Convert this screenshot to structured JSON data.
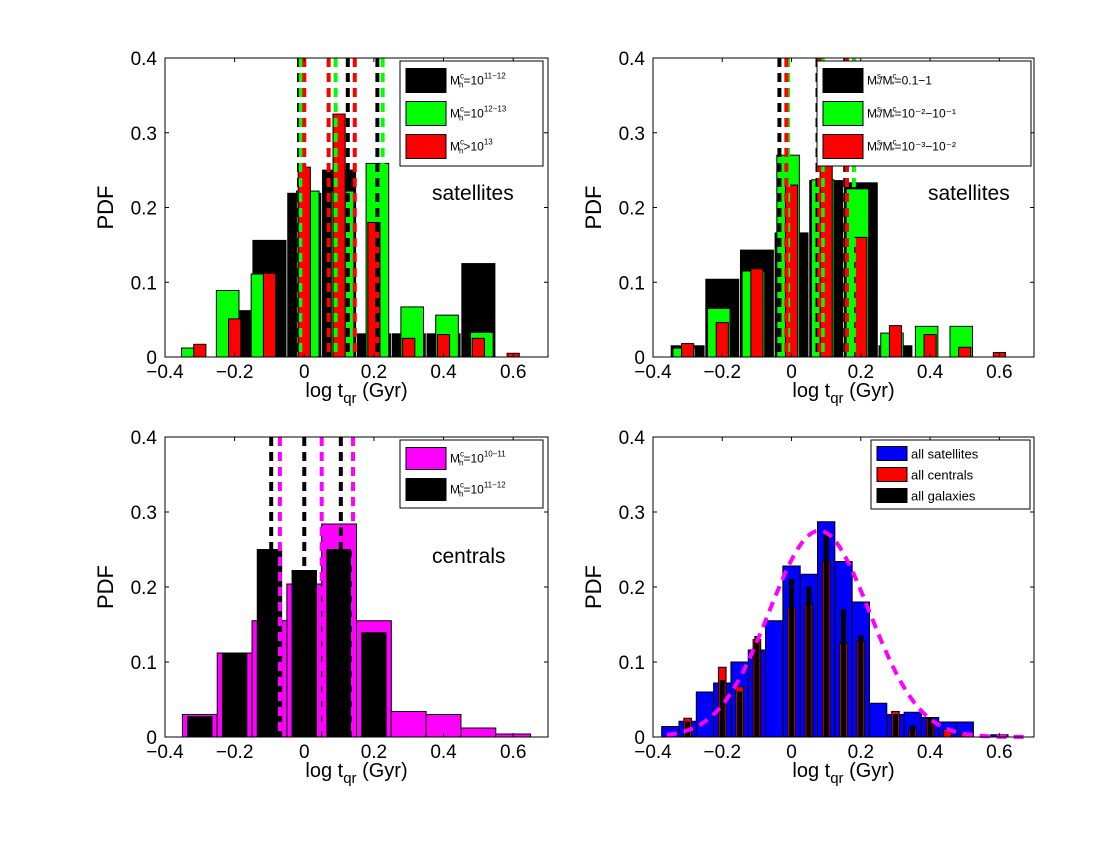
{
  "figure": {
    "panels": 4
  },
  "chart_data": [
    {
      "type": "bar",
      "id": "tl",
      "annotation": "satellites",
      "xlabel": "log t",
      "xlabel_sub": "qr",
      "xlabel_unit": " (Gyr)",
      "ylabel": "PDF",
      "xlim": [
        -0.4,
        0.7
      ],
      "ylim": [
        0,
        0.4
      ],
      "xticks": [
        -0.4,
        -0.2,
        0,
        0.2,
        0.4,
        0.6
      ],
      "xtick_labels": [
        "−0.4",
        "−0.2",
        "0",
        "0.2",
        "0.4",
        "0.6"
      ],
      "yticks": [
        0,
        0.1,
        0.2,
        0.3,
        0.4
      ],
      "ytick_labels": [
        "0",
        "0.1",
        "0.2",
        "0.3",
        "0.4"
      ],
      "legend": [
        {
          "base": "M",
          "sup": "c",
          "sub": "h",
          "rest": "=10",
          "rsup": "11−12",
          "color": "#000000"
        },
        {
          "base": "M",
          "sup": "c",
          "sub": "h",
          "rest": "=10",
          "rsup": "12−13",
          "color": "#00ff00"
        },
        {
          "base": "M",
          "sup": "c",
          "sub": "h",
          "rest": ">10",
          "rsup": "13",
          "color": "#ff0000"
        }
      ],
      "series": [
        {
          "name": "M_h^c=10^11-12",
          "color": "#000000",
          "x": [
            -0.2,
            -0.1,
            0.0,
            0.1,
            0.2,
            0.3,
            0.4,
            0.5
          ],
          "width": 0.095,
          "values": [
            0.062,
            0.156,
            0.219,
            0.25,
            0.031,
            0.031,
            0.031,
            0.125
          ]
        },
        {
          "name": "M_h^c=10^12-13",
          "color": "#00ff00",
          "x": [
            -0.32,
            -0.22,
            -0.12,
            0.01,
            0.11,
            0.21,
            0.31,
            0.41,
            0.51
          ],
          "width": 0.065,
          "values": [
            0.012,
            0.089,
            0.111,
            0.222,
            0.222,
            0.259,
            0.067,
            0.056,
            0.033
          ]
        },
        {
          "name": "M_h^c>10^13",
          "color": "#ff0000",
          "x": [
            -0.3,
            -0.2,
            -0.1,
            0.0,
            0.1,
            0.2,
            0.3,
            0.4,
            0.5,
            0.6
          ],
          "width": 0.035,
          "values": [
            0.017,
            0.051,
            0.112,
            0.254,
            0.325,
            0.18,
            0.025,
            0.03,
            0.025,
            0.005
          ]
        }
      ],
      "vlines": [
        {
          "x": -0.015,
          "color": "#000000"
        },
        {
          "x": 0.125,
          "color": "#000000"
        },
        {
          "x": 0.21,
          "color": "#000000"
        },
        {
          "x": -0.01,
          "color": "#00ff00"
        },
        {
          "x": 0.09,
          "color": "#00ff00"
        },
        {
          "x": 0.225,
          "color": "#00ff00"
        },
        {
          "x": 0.0,
          "color": "#ff0000"
        },
        {
          "x": 0.07,
          "color": "#ff0000"
        },
        {
          "x": 0.145,
          "color": "#ff0000"
        }
      ]
    },
    {
      "type": "bar",
      "id": "tr",
      "annotation": "satellites",
      "xlabel": "log t",
      "xlabel_sub": "qr",
      "xlabel_unit": " (Gyr)",
      "ylabel": "PDF",
      "xlim": [
        -0.4,
        0.7
      ],
      "ylim": [
        0,
        0.4
      ],
      "xticks": [
        -0.4,
        -0.2,
        0,
        0.2,
        0.4,
        0.6
      ],
      "xtick_labels": [
        "−0.4",
        "−0.2",
        "0",
        "0.2",
        "0.4",
        "0.6"
      ],
      "yticks": [
        0,
        0.1,
        0.2,
        0.3,
        0.4
      ],
      "ytick_labels": [
        "0",
        "0.1",
        "0.2",
        "0.3",
        "0.4"
      ],
      "legend": [
        {
          "base": "M",
          "sup": "s",
          "sub": "*",
          "rest": "/M",
          "rsup": "c",
          "rsub": "*",
          "tail": "=0.1−1",
          "color": "#000000"
        },
        {
          "base": "M",
          "sup": "s",
          "sub": "*",
          "rest": "/M",
          "rsup": "c",
          "rsub": "*",
          "tail": "=10⁻²−10⁻¹",
          "color": "#00ff00"
        },
        {
          "base": "M",
          "sup": "s",
          "sub": "*",
          "rest": "/M",
          "rsup": "c",
          "rsub": "*",
          "tail": "=10⁻³−10⁻²",
          "color": "#ff0000"
        }
      ],
      "series": [
        {
          "name": "Ms/Mc=0.1-1",
          "color": "#000000",
          "x": [
            -0.3,
            -0.2,
            -0.1,
            0.0,
            0.1,
            0.2,
            0.3
          ],
          "width": 0.095,
          "values": [
            0.015,
            0.104,
            0.143,
            0.166,
            0.236,
            0.233,
            0.015
          ]
        },
        {
          "name": "Ms/Mc=10^-2-10^-1",
          "color": "#00ff00",
          "x": [
            -0.31,
            -0.21,
            -0.11,
            -0.01,
            0.09,
            0.19,
            0.29,
            0.39,
            0.49
          ],
          "width": 0.065,
          "values": [
            0.012,
            0.065,
            0.115,
            0.27,
            0.237,
            0.225,
            0.032,
            0.041,
            0.041
          ]
        },
        {
          "name": "Ms/Mc=10^-3-10^-2",
          "color": "#ff0000",
          "x": [
            -0.3,
            -0.2,
            -0.1,
            0.0,
            0.1,
            0.2,
            0.3,
            0.4,
            0.5,
            0.6
          ],
          "width": 0.035,
          "values": [
            0.018,
            0.046,
            0.118,
            0.23,
            0.342,
            0.16,
            0.042,
            0.03,
            0.013,
            0.006
          ]
        }
      ],
      "vlines": [
        {
          "x": -0.035,
          "color": "#000000"
        },
        {
          "x": 0.075,
          "color": "#000000"
        },
        {
          "x": 0.155,
          "color": "#000000"
        },
        {
          "x": -0.01,
          "color": "#00ff00"
        },
        {
          "x": 0.09,
          "color": "#00ff00"
        },
        {
          "x": 0.18,
          "color": "#00ff00"
        },
        {
          "x": -0.015,
          "color": "#ff0000"
        },
        {
          "x": 0.08,
          "color": "#ff0000"
        },
        {
          "x": 0.16,
          "color": "#ff0000"
        }
      ]
    },
    {
      "type": "bar",
      "id": "bl",
      "annotation": "centrals",
      "xlabel": "log t",
      "xlabel_sub": "qr",
      "xlabel_unit": " (Gyr)",
      "ylabel": "PDF",
      "xlim": [
        -0.4,
        0.7
      ],
      "ylim": [
        0,
        0.4
      ],
      "xticks": [
        -0.4,
        -0.2,
        0,
        0.2,
        0.4,
        0.6
      ],
      "xtick_labels": [
        "−0.4",
        "−0.2",
        "0",
        "0.2",
        "0.4",
        "0.6"
      ],
      "yticks": [
        0,
        0.1,
        0.2,
        0.3,
        0.4
      ],
      "ytick_labels": [
        "0",
        "0.1",
        "0.2",
        "0.3",
        "0.4"
      ],
      "legend": [
        {
          "base": "M",
          "sup": "c",
          "sub": "h",
          "rest": "=10",
          "rsup": "10−11",
          "color": "#ff00ff"
        },
        {
          "base": "M",
          "sup": "c",
          "sub": "h",
          "rest": "=10",
          "rsup": "11−12",
          "color": "#000000"
        }
      ],
      "series": [
        {
          "name": "M_h^c=10^10-11",
          "color": "#ff00ff",
          "x": [
            -0.3,
            -0.2,
            -0.1,
            0.0,
            0.1,
            0.2,
            0.3,
            0.4,
            0.5,
            0.6
          ],
          "width": 0.1,
          "values": [
            0.03,
            0.112,
            0.155,
            0.204,
            0.284,
            0.155,
            0.034,
            0.03,
            0.012,
            0.004
          ]
        },
        {
          "name": "M_h^c=10^11-12",
          "color": "#000000",
          "x": [
            -0.3,
            -0.2,
            -0.1,
            0.0,
            0.1,
            0.2
          ],
          "width": 0.07,
          "values": [
            0.027,
            0.112,
            0.25,
            0.222,
            0.25,
            0.139
          ]
        }
      ],
      "vlines": [
        {
          "x": -0.095,
          "color": "#000000"
        },
        {
          "x": 0.0,
          "color": "#000000"
        },
        {
          "x": 0.105,
          "color": "#000000"
        },
        {
          "x": -0.07,
          "color": "#ff00ff"
        },
        {
          "x": 0.05,
          "color": "#ff00ff"
        },
        {
          "x": 0.14,
          "color": "#ff00ff"
        }
      ]
    },
    {
      "type": "bar",
      "id": "br",
      "annotation": "",
      "xlabel": "log t",
      "xlabel_sub": "qr",
      "xlabel_unit": " (Gyr)",
      "ylabel": "PDF",
      "xlim": [
        -0.4,
        0.7
      ],
      "ylim": [
        0,
        0.4
      ],
      "xticks": [
        -0.4,
        -0.2,
        0,
        0.2,
        0.4,
        0.6
      ],
      "xtick_labels": [
        "−0.4",
        "−0.2",
        "0",
        "0.2",
        "0.4",
        "0.6"
      ],
      "yticks": [
        0,
        0.1,
        0.2,
        0.3,
        0.4
      ],
      "ytick_labels": [
        "0",
        "0.1",
        "0.2",
        "0.3",
        "0.4"
      ],
      "legend": [
        {
          "plain": "all satellites",
          "color": "#0000ff"
        },
        {
          "plain": "all centrals",
          "color": "#ff0000"
        },
        {
          "plain": "all galaxies",
          "color": "#000000"
        }
      ],
      "series": [
        {
          "name": "all satellites",
          "color": "#0000ff",
          "x": [
            -0.35,
            -0.3,
            -0.25,
            -0.2,
            -0.15,
            -0.1,
            -0.05,
            0.0,
            0.05,
            0.1,
            0.15,
            0.2,
            0.25,
            0.3,
            0.35,
            0.4,
            0.45,
            0.5,
            0.55,
            0.6
          ],
          "width": 0.05,
          "values": [
            0.014,
            0.021,
            0.06,
            0.072,
            0.1,
            0.116,
            0.155,
            0.228,
            0.217,
            0.287,
            0.234,
            0.18,
            0.045,
            0.03,
            0.033,
            0.026,
            0.02,
            0.02,
            0.0,
            0.003
          ]
        },
        {
          "name": "all centrals",
          "color": "#ff0000",
          "x": [
            -0.3,
            -0.2,
            -0.15,
            -0.1,
            0.0,
            0.05,
            0.1,
            0.15,
            0.2,
            0.3,
            0.35,
            0.4,
            0.45,
            0.5
          ],
          "width": 0.022,
          "values": [
            0.025,
            0.093,
            0.067,
            0.13,
            0.172,
            0.178,
            0.235,
            0.125,
            0.128,
            0.034,
            0.01,
            0.025,
            0.01,
            0.005
          ]
        },
        {
          "name": "all galaxies",
          "color": "#000000",
          "x": [
            -0.3,
            -0.2,
            -0.15,
            -0.1,
            0.0,
            0.05,
            0.1,
            0.15,
            0.2,
            0.3,
            0.35,
            0.4
          ],
          "width": 0.012,
          "values": [
            0.02,
            0.075,
            0.06,
            0.134,
            0.21,
            0.2,
            0.275,
            0.17,
            0.135,
            0.03,
            0.015,
            0.025
          ]
        }
      ],
      "fit": {
        "color": "#ff00ff",
        "mean": 0.08,
        "sigma": 0.145,
        "peak": 0.275,
        "range": [
          -0.36,
          0.67
        ]
      }
    }
  ]
}
